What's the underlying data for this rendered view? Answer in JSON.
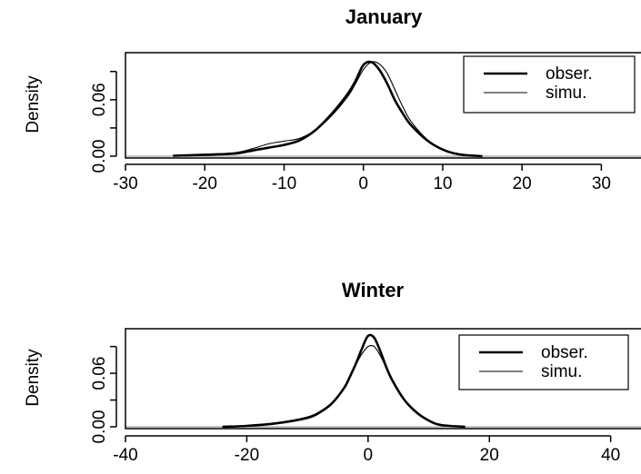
{
  "chart_data": [
    {
      "type": "line",
      "title": "January",
      "xlabel": "",
      "ylabel": "Density",
      "xlim": [
        -30,
        35
      ],
      "ylim": [
        0,
        0.11
      ],
      "x_ticks": [
        -30,
        -20,
        -10,
        0,
        10,
        20,
        30
      ],
      "x_tick_labels": [
        "-30",
        "-20",
        "-10",
        "0",
        "10",
        "20",
        "30"
      ],
      "y_ticks": [
        0.0,
        0.03,
        0.06,
        0.09
      ],
      "y_tick_labels": [
        "0.00",
        "",
        "0.06",
        ""
      ],
      "legend": {
        "placement": "top-right",
        "entries": [
          "obser.",
          "simu."
        ]
      },
      "series": [
        {
          "name": "obser.",
          "line_width": "thick",
          "x": [
            -24,
            -20,
            -16,
            -14,
            -12,
            -10,
            -8,
            -6,
            -4,
            -2,
            -1,
            0,
            1,
            2,
            3,
            4,
            5,
            6,
            8,
            10,
            12,
            15
          ],
          "y": [
            0.0005,
            0.0015,
            0.003,
            0.006,
            0.009,
            0.012,
            0.017,
            0.028,
            0.045,
            0.066,
            0.08,
            0.097,
            0.1,
            0.092,
            0.077,
            0.059,
            0.045,
            0.033,
            0.017,
            0.007,
            0.002,
            0.0
          ]
        },
        {
          "name": "simu.",
          "line_width": "thin",
          "x": [
            -24,
            -20,
            -16,
            -14,
            -12,
            -10,
            -8,
            -6,
            -4,
            -2,
            -1,
            0,
            1,
            2,
            3,
            4,
            5,
            6,
            8,
            10,
            12,
            15
          ],
          "y": [
            0.0003,
            0.0012,
            0.004,
            0.008,
            0.013,
            0.016,
            0.019,
            0.028,
            0.043,
            0.063,
            0.077,
            0.092,
            0.1,
            0.098,
            0.088,
            0.07,
            0.052,
            0.037,
            0.018,
            0.007,
            0.002,
            0.0
          ]
        }
      ]
    },
    {
      "type": "line",
      "title": "Winter",
      "xlabel": "",
      "ylabel": "Density",
      "xlim": [
        -40,
        45
      ],
      "ylim": [
        0,
        0.11
      ],
      "x_ticks": [
        -40,
        -20,
        0,
        20,
        40
      ],
      "x_tick_labels": [
        "-40",
        "-20",
        "0",
        "20",
        "40"
      ],
      "y_ticks": [
        0.0,
        0.03,
        0.06,
        0.09
      ],
      "y_tick_labels": [
        "0.00",
        "",
        "0.06",
        ""
      ],
      "legend": {
        "placement": "right",
        "entries": [
          "obser.",
          "simu."
        ]
      },
      "series": [
        {
          "name": "obser.",
          "line_width": "thick",
          "x": [
            -24,
            -20,
            -15,
            -10,
            -8,
            -6,
            -4,
            -3,
            -2,
            -1,
            0,
            1,
            2,
            3,
            4,
            6,
            8,
            10,
            12,
            16
          ],
          "y": [
            0.0,
            0.001,
            0.004,
            0.01,
            0.016,
            0.026,
            0.043,
            0.056,
            0.071,
            0.088,
            0.102,
            0.1,
            0.085,
            0.067,
            0.052,
            0.03,
            0.016,
            0.007,
            0.002,
            0.0
          ]
        },
        {
          "name": "simu.",
          "line_width": "thin",
          "x": [
            -24,
            -20,
            -15,
            -10,
            -8,
            -6,
            -4,
            -3,
            -2,
            -1,
            0,
            1,
            2,
            3,
            4,
            6,
            8,
            10,
            12,
            16
          ],
          "y": [
            0.0,
            0.001,
            0.004,
            0.011,
            0.017,
            0.027,
            0.044,
            0.057,
            0.07,
            0.082,
            0.09,
            0.09,
            0.08,
            0.066,
            0.052,
            0.031,
            0.017,
            0.007,
            0.002,
            0.0
          ]
        }
      ]
    }
  ]
}
